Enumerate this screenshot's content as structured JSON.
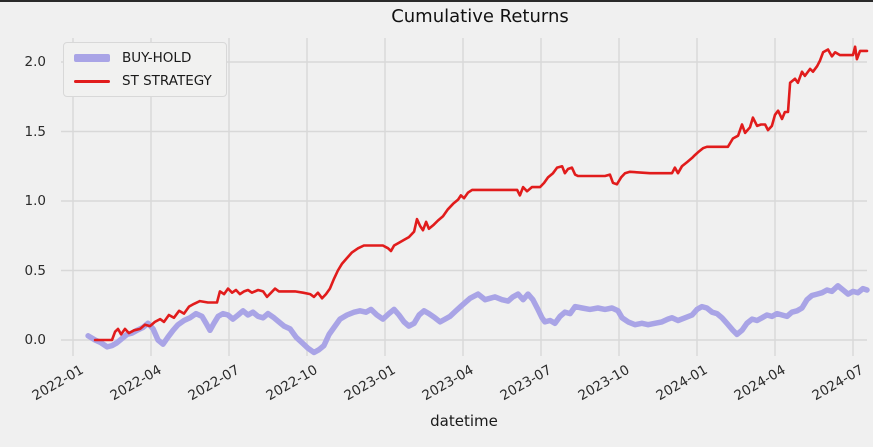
{
  "page": {
    "background": "#f0f0f0",
    "top_edge_color": "#2a2a2a"
  },
  "chart_data": {
    "type": "line",
    "title": "Cumulative Returns",
    "xlabel": "datetime",
    "ylabel": "",
    "grid": true,
    "legend_position": "upper left",
    "x_unit": "months since 2022-01",
    "x_tick_positions": [
      0,
      3,
      6,
      9,
      12,
      15,
      18,
      21,
      24,
      27,
      30
    ],
    "x_tick_labels": [
      "2022-01",
      "2022-04",
      "2022-07",
      "2022-10",
      "2023-01",
      "2023-04",
      "2023-07",
      "2023-10",
      "2024-01",
      "2024-04",
      "2024-07"
    ],
    "y_tick_values": [
      0.0,
      0.5,
      1.0,
      1.5,
      2.0
    ],
    "y_tick_labels": [
      "0.0",
      "0.5",
      "1.0",
      "1.5",
      "2.0"
    ],
    "xlim": [
      -0.46,
      30.6
    ],
    "ylim": [
      -0.12,
      2.17
    ],
    "background_color": "#f0f0f0",
    "grid_color": "#d8d8d8",
    "series": [
      {
        "name": "BUY-HOLD",
        "color": "#a9a4e6",
        "line_width": 5.5,
        "points": [
          [
            0.58,
            0.03
          ],
          [
            0.85,
            0.0
          ],
          [
            1.08,
            -0.02
          ],
          [
            1.31,
            -0.05
          ],
          [
            1.5,
            -0.04
          ],
          [
            1.69,
            -0.02
          ],
          [
            1.88,
            0.01
          ],
          [
            2.08,
            0.04
          ],
          [
            2.27,
            0.05
          ],
          [
            2.46,
            0.07
          ],
          [
            2.69,
            0.09
          ],
          [
            2.88,
            0.12
          ],
          [
            3.08,
            0.08
          ],
          [
            3.27,
            0.0
          ],
          [
            3.46,
            -0.03
          ],
          [
            3.65,
            0.02
          ],
          [
            3.85,
            0.07
          ],
          [
            4.04,
            0.11
          ],
          [
            4.27,
            0.14
          ],
          [
            4.5,
            0.16
          ],
          [
            4.73,
            0.19
          ],
          [
            4.96,
            0.17
          ],
          [
            5.12,
            0.12
          ],
          [
            5.27,
            0.07
          ],
          [
            5.42,
            0.12
          ],
          [
            5.58,
            0.17
          ],
          [
            5.77,
            0.19
          ],
          [
            5.96,
            0.18
          ],
          [
            6.15,
            0.15
          ],
          [
            6.35,
            0.18
          ],
          [
            6.54,
            0.21
          ],
          [
            6.73,
            0.18
          ],
          [
            6.92,
            0.2
          ],
          [
            7.12,
            0.17
          ],
          [
            7.31,
            0.16
          ],
          [
            7.5,
            0.19
          ],
          [
            7.73,
            0.16
          ],
          [
            7.92,
            0.13
          ],
          [
            8.12,
            0.1
          ],
          [
            8.35,
            0.08
          ],
          [
            8.58,
            0.02
          ],
          [
            8.81,
            -0.02
          ],
          [
            9.04,
            -0.06
          ],
          [
            9.27,
            -0.09
          ],
          [
            9.46,
            -0.07
          ],
          [
            9.65,
            -0.04
          ],
          [
            9.85,
            0.04
          ],
          [
            10.04,
            0.09
          ],
          [
            10.27,
            0.15
          ],
          [
            10.54,
            0.18
          ],
          [
            10.81,
            0.2
          ],
          [
            11.04,
            0.21
          ],
          [
            11.27,
            0.2
          ],
          [
            11.46,
            0.22
          ],
          [
            11.69,
            0.18
          ],
          [
            11.92,
            0.15
          ],
          [
            12.15,
            0.19
          ],
          [
            12.35,
            0.22
          ],
          [
            12.54,
            0.18
          ],
          [
            12.73,
            0.13
          ],
          [
            12.92,
            0.1
          ],
          [
            13.12,
            0.12
          ],
          [
            13.31,
            0.18
          ],
          [
            13.5,
            0.21
          ],
          [
            13.69,
            0.19
          ],
          [
            13.92,
            0.16
          ],
          [
            14.12,
            0.13
          ],
          [
            14.31,
            0.15
          ],
          [
            14.5,
            0.17
          ],
          [
            14.73,
            0.21
          ],
          [
            14.96,
            0.25
          ],
          [
            15.27,
            0.3
          ],
          [
            15.58,
            0.33
          ],
          [
            15.85,
            0.29
          ],
          [
            16.04,
            0.3
          ],
          [
            16.23,
            0.31
          ],
          [
            16.5,
            0.29
          ],
          [
            16.73,
            0.28
          ],
          [
            16.92,
            0.31
          ],
          [
            17.12,
            0.33
          ],
          [
            17.31,
            0.29
          ],
          [
            17.5,
            0.33
          ],
          [
            17.69,
            0.29
          ],
          [
            17.88,
            0.22
          ],
          [
            18.04,
            0.16
          ],
          [
            18.15,
            0.13
          ],
          [
            18.35,
            0.14
          ],
          [
            18.54,
            0.12
          ],
          [
            18.73,
            0.17
          ],
          [
            18.92,
            0.2
          ],
          [
            19.12,
            0.19
          ],
          [
            19.31,
            0.24
          ],
          [
            19.58,
            0.23
          ],
          [
            19.88,
            0.22
          ],
          [
            20.19,
            0.23
          ],
          [
            20.46,
            0.22
          ],
          [
            20.73,
            0.23
          ],
          [
            20.96,
            0.21
          ],
          [
            21.12,
            0.16
          ],
          [
            21.35,
            0.13
          ],
          [
            21.62,
            0.11
          ],
          [
            21.88,
            0.12
          ],
          [
            22.12,
            0.11
          ],
          [
            22.38,
            0.12
          ],
          [
            22.65,
            0.13
          ],
          [
            22.88,
            0.15
          ],
          [
            23.04,
            0.16
          ],
          [
            23.27,
            0.14
          ],
          [
            23.54,
            0.16
          ],
          [
            23.81,
            0.18
          ],
          [
            24.0,
            0.22
          ],
          [
            24.19,
            0.24
          ],
          [
            24.38,
            0.23
          ],
          [
            24.58,
            0.2
          ],
          [
            24.77,
            0.19
          ],
          [
            24.96,
            0.16
          ],
          [
            25.15,
            0.12
          ],
          [
            25.38,
            0.07
          ],
          [
            25.54,
            0.04
          ],
          [
            25.73,
            0.07
          ],
          [
            25.92,
            0.12
          ],
          [
            26.12,
            0.15
          ],
          [
            26.31,
            0.14
          ],
          [
            26.5,
            0.16
          ],
          [
            26.69,
            0.18
          ],
          [
            26.88,
            0.17
          ],
          [
            27.08,
            0.19
          ],
          [
            27.27,
            0.18
          ],
          [
            27.46,
            0.17
          ],
          [
            27.65,
            0.2
          ],
          [
            27.85,
            0.21
          ],
          [
            28.04,
            0.23
          ],
          [
            28.23,
            0.29
          ],
          [
            28.42,
            0.32
          ],
          [
            28.62,
            0.33
          ],
          [
            28.81,
            0.34
          ],
          [
            29.0,
            0.36
          ],
          [
            29.19,
            0.35
          ],
          [
            29.42,
            0.39
          ],
          [
            29.62,
            0.36
          ],
          [
            29.81,
            0.33
          ],
          [
            30.0,
            0.35
          ],
          [
            30.19,
            0.34
          ],
          [
            30.38,
            0.37
          ],
          [
            30.54,
            0.36
          ]
        ]
      },
      {
        "name": "ST STRATEGY",
        "color": "#e11c1c",
        "line_width": 2.6,
        "points": [
          [
            0.85,
            0.0
          ],
          [
            1.5,
            0.0
          ],
          [
            1.62,
            0.06
          ],
          [
            1.73,
            0.08
          ],
          [
            1.85,
            0.04
          ],
          [
            2.0,
            0.08
          ],
          [
            2.15,
            0.05
          ],
          [
            2.35,
            0.07
          ],
          [
            2.58,
            0.08
          ],
          [
            2.77,
            0.11
          ],
          [
            2.96,
            0.1
          ],
          [
            3.15,
            0.13
          ],
          [
            3.35,
            0.15
          ],
          [
            3.5,
            0.13
          ],
          [
            3.69,
            0.18
          ],
          [
            3.88,
            0.16
          ],
          [
            4.08,
            0.21
          ],
          [
            4.27,
            0.19
          ],
          [
            4.46,
            0.24
          ],
          [
            4.65,
            0.26
          ],
          [
            4.88,
            0.28
          ],
          [
            5.19,
            0.27
          ],
          [
            5.54,
            0.27
          ],
          [
            5.65,
            0.35
          ],
          [
            5.81,
            0.33
          ],
          [
            5.96,
            0.37
          ],
          [
            6.12,
            0.34
          ],
          [
            6.27,
            0.36
          ],
          [
            6.42,
            0.33
          ],
          [
            6.58,
            0.35
          ],
          [
            6.73,
            0.36
          ],
          [
            6.88,
            0.34
          ],
          [
            7.12,
            0.36
          ],
          [
            7.31,
            0.35
          ],
          [
            7.46,
            0.31
          ],
          [
            7.62,
            0.34
          ],
          [
            7.77,
            0.37
          ],
          [
            7.92,
            0.35
          ],
          [
            8.15,
            0.35
          ],
          [
            8.54,
            0.35
          ],
          [
            8.85,
            0.34
          ],
          [
            9.12,
            0.33
          ],
          [
            9.27,
            0.31
          ],
          [
            9.42,
            0.34
          ],
          [
            9.58,
            0.3
          ],
          [
            9.73,
            0.33
          ],
          [
            9.88,
            0.37
          ],
          [
            10.04,
            0.44
          ],
          [
            10.19,
            0.5
          ],
          [
            10.35,
            0.55
          ],
          [
            10.54,
            0.59
          ],
          [
            10.73,
            0.63
          ],
          [
            10.96,
            0.66
          ],
          [
            11.19,
            0.68
          ],
          [
            11.5,
            0.68
          ],
          [
            11.92,
            0.68
          ],
          [
            12.12,
            0.66
          ],
          [
            12.23,
            0.64
          ],
          [
            12.35,
            0.68
          ],
          [
            12.54,
            0.7
          ],
          [
            12.73,
            0.72
          ],
          [
            12.92,
            0.74
          ],
          [
            13.12,
            0.78
          ],
          [
            13.23,
            0.87
          ],
          [
            13.35,
            0.82
          ],
          [
            13.46,
            0.79
          ],
          [
            13.58,
            0.85
          ],
          [
            13.69,
            0.8
          ],
          [
            13.88,
            0.83
          ],
          [
            14.04,
            0.86
          ],
          [
            14.23,
            0.89
          ],
          [
            14.42,
            0.94
          ],
          [
            14.62,
            0.98
          ],
          [
            14.81,
            1.01
          ],
          [
            14.92,
            1.04
          ],
          [
            15.04,
            1.02
          ],
          [
            15.19,
            1.06
          ],
          [
            15.35,
            1.08
          ],
          [
            15.65,
            1.08
          ],
          [
            16.42,
            1.08
          ],
          [
            17.08,
            1.08
          ],
          [
            17.19,
            1.04
          ],
          [
            17.31,
            1.1
          ],
          [
            17.46,
            1.07
          ],
          [
            17.65,
            1.1
          ],
          [
            17.96,
            1.1
          ],
          [
            18.12,
            1.13
          ],
          [
            18.27,
            1.17
          ],
          [
            18.46,
            1.2
          ],
          [
            18.62,
            1.24
          ],
          [
            18.81,
            1.25
          ],
          [
            18.92,
            1.2
          ],
          [
            19.04,
            1.23
          ],
          [
            19.19,
            1.24
          ],
          [
            19.31,
            1.19
          ],
          [
            19.42,
            1.18
          ],
          [
            19.88,
            1.18
          ],
          [
            20.46,
            1.18
          ],
          [
            20.65,
            1.19
          ],
          [
            20.77,
            1.13
          ],
          [
            20.92,
            1.12
          ],
          [
            21.08,
            1.17
          ],
          [
            21.23,
            1.2
          ],
          [
            21.42,
            1.21
          ],
          [
            22.19,
            1.2
          ],
          [
            23.04,
            1.2
          ],
          [
            23.15,
            1.24
          ],
          [
            23.27,
            1.2
          ],
          [
            23.42,
            1.25
          ],
          [
            23.62,
            1.28
          ],
          [
            23.81,
            1.31
          ],
          [
            23.92,
            1.33
          ],
          [
            24.04,
            1.35
          ],
          [
            24.23,
            1.38
          ],
          [
            24.38,
            1.39
          ],
          [
            25.19,
            1.39
          ],
          [
            25.38,
            1.45
          ],
          [
            25.58,
            1.47
          ],
          [
            25.73,
            1.55
          ],
          [
            25.85,
            1.49
          ],
          [
            26.04,
            1.53
          ],
          [
            26.15,
            1.6
          ],
          [
            26.31,
            1.54
          ],
          [
            26.46,
            1.55
          ],
          [
            26.62,
            1.55
          ],
          [
            26.73,
            1.51
          ],
          [
            26.88,
            1.54
          ],
          [
            27.0,
            1.62
          ],
          [
            27.12,
            1.65
          ],
          [
            27.27,
            1.59
          ],
          [
            27.38,
            1.64
          ],
          [
            27.5,
            1.64
          ],
          [
            27.58,
            1.85
          ],
          [
            27.77,
            1.88
          ],
          [
            27.88,
            1.85
          ],
          [
            28.04,
            1.93
          ],
          [
            28.15,
            1.9
          ],
          [
            28.35,
            1.95
          ],
          [
            28.46,
            1.93
          ],
          [
            28.62,
            1.97
          ],
          [
            28.73,
            2.01
          ],
          [
            28.85,
            2.07
          ],
          [
            29.04,
            2.09
          ],
          [
            29.19,
            2.04
          ],
          [
            29.31,
            2.07
          ],
          [
            29.5,
            2.05
          ],
          [
            30.0,
            2.05
          ],
          [
            30.08,
            2.11
          ],
          [
            30.15,
            2.02
          ],
          [
            30.27,
            2.08
          ],
          [
            30.54,
            2.08
          ]
        ]
      }
    ]
  }
}
